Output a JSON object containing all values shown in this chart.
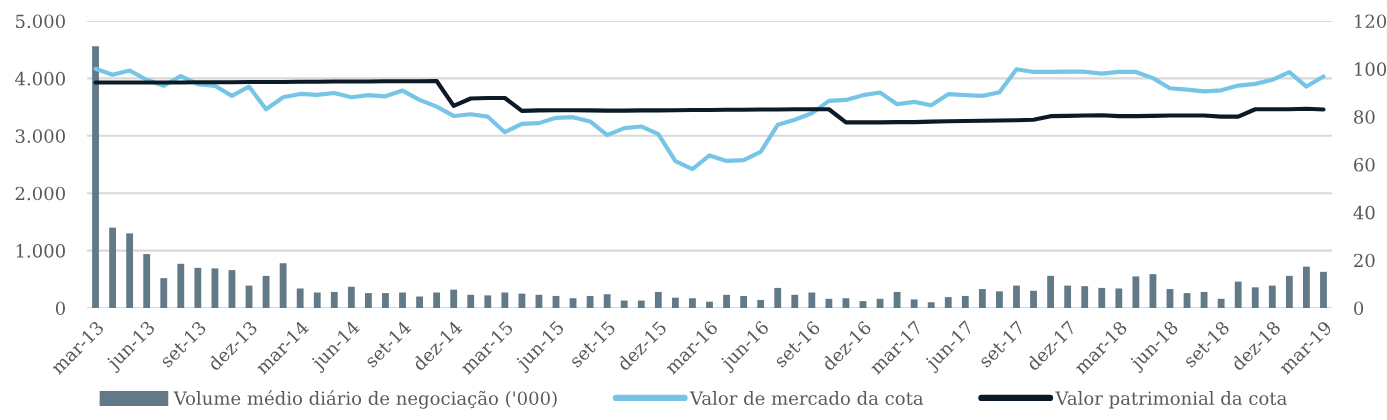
{
  "chart_data": {
    "type": "bar",
    "categories": [
      "mar-13",
      null,
      null,
      "jun-13",
      null,
      null,
      "set-13",
      null,
      null,
      "dez-13",
      null,
      null,
      "mar-14",
      null,
      null,
      "jun-14",
      null,
      null,
      "set-14",
      null,
      null,
      "dez-14",
      null,
      null,
      "mar-15",
      null,
      null,
      "jun-15",
      null,
      null,
      "set-15",
      null,
      null,
      "dez-15",
      null,
      null,
      "mar-16",
      null,
      null,
      "jun-16",
      null,
      null,
      "set-16",
      null,
      null,
      "dez-16",
      null,
      null,
      "mar-17",
      null,
      null,
      "jun-17",
      null,
      null,
      "set-17",
      null,
      null,
      "dez-17",
      null,
      null,
      "mar-18",
      null,
      null,
      "jun-18",
      null,
      null,
      "set-18",
      null,
      null,
      "dez-18",
      null,
      null,
      "mar-19"
    ],
    "series": [
      {
        "name": "Volume médio diário de negociação ('000)",
        "color": "#627a88",
        "values": [
          4560,
          1400,
          1300,
          940,
          520,
          770,
          700,
          690,
          660,
          390,
          560,
          780,
          340,
          270,
          280,
          370,
          260,
          260,
          270,
          200,
          270,
          320,
          230,
          220,
          270,
          250,
          230,
          210,
          170,
          210,
          240,
          130,
          130,
          280,
          180,
          170,
          110,
          230,
          210,
          140,
          350,
          230,
          270,
          160,
          170,
          120,
          160,
          280,
          150,
          100,
          190,
          210,
          330,
          290,
          390,
          300,
          560,
          390,
          380,
          350,
          340,
          550,
          590,
          330,
          260,
          280,
          160,
          460,
          360,
          390,
          560,
          720,
          630
        ]
      },
      {
        "name": "Valor de mercado da cota",
        "type": "line",
        "axis": "y2",
        "color": "#76c5e6",
        "values": [
          100,
          97.5,
          99.3,
          95.4,
          92.9,
          97.0,
          93.6,
          92.9,
          88.7,
          92.6,
          83.1,
          88.1,
          89.5,
          89.1,
          89.9,
          88.1,
          89.0,
          88.5,
          90.9,
          87.0,
          84.2,
          80.3,
          81.0,
          80.0,
          73.5,
          77.0,
          77.3,
          79.5,
          79.8,
          78.0,
          72.3,
          75.2,
          75.9,
          72.7,
          61.4,
          58.1,
          63.8,
          61.5,
          61.8,
          65.3,
          76.6,
          78.7,
          81.4,
          86.6,
          87.0,
          89.0,
          90.1,
          85.2,
          86.2,
          84.8,
          89.4,
          89.0,
          88.7,
          90.2,
          99.8,
          98.7,
          98.7,
          98.8,
          98.8,
          98.0,
          98.7,
          98.7,
          96.1,
          91.9,
          91.3,
          90.6,
          91.0,
          93.0,
          93.7,
          95.4,
          98.6,
          92.6,
          96.8
        ]
      },
      {
        "name": "Valor patrimonial da cota",
        "type": "line",
        "axis": "y2",
        "color": "#0b1a26",
        "values": [
          94.3,
          94.3,
          94.3,
          94.3,
          94.3,
          94.3,
          94.4,
          94.4,
          94.4,
          94.5,
          94.5,
          94.5,
          94.6,
          94.6,
          94.7,
          94.7,
          94.7,
          94.8,
          94.8,
          94.8,
          94.9,
          84.5,
          87.6,
          87.8,
          87.8,
          82.4,
          82.6,
          82.7,
          82.7,
          82.6,
          82.5,
          82.5,
          82.6,
          82.6,
          82.7,
          82.8,
          82.8,
          82.9,
          82.9,
          83.0,
          83.0,
          83.1,
          83.1,
          83.1,
          77.6,
          77.6,
          77.6,
          77.7,
          77.7,
          77.9,
          78.1,
          78.2,
          78.3,
          78.4,
          78.5,
          78.7,
          80.2,
          80.3,
          80.5,
          80.6,
          80.2,
          80.2,
          80.3,
          80.5,
          80.5,
          80.5,
          80.0,
          80.0,
          83.1,
          83.1,
          83.1,
          83.3,
          83.0
        ]
      }
    ],
    "ylim": [
      0,
      5000
    ],
    "yticks": [
      0,
      {
        "value": 1000,
        "label": "1.000"
      },
      {
        "value": 2000,
        "label": "2.000"
      },
      {
        "value": 3000,
        "label": "3.000"
      },
      {
        "value": 4000,
        "label": "4.000"
      },
      {
        "value": 5000,
        "label": "5.000"
      }
    ],
    "y2lim": [
      0,
      120
    ],
    "y2ticks": [
      0,
      20,
      40,
      60,
      80,
      100,
      120
    ],
    "grid": "y",
    "legend": "bottom"
  }
}
